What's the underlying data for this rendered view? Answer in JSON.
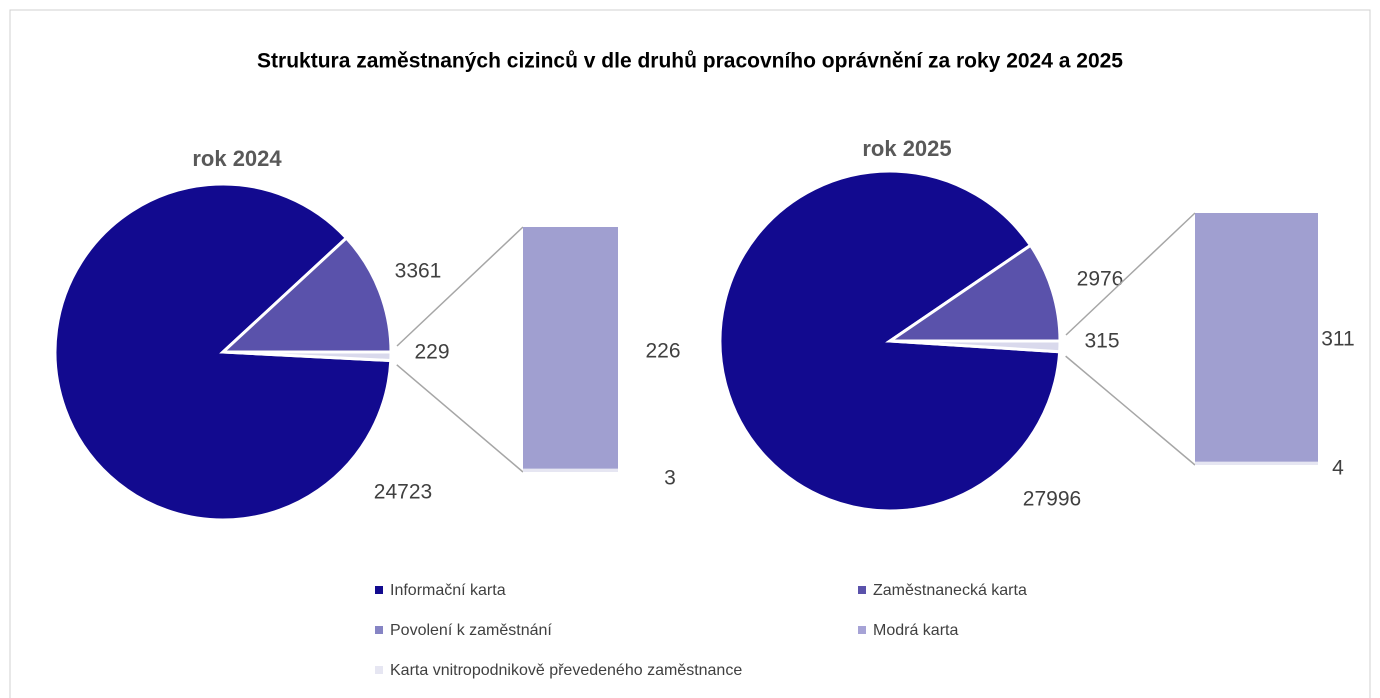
{
  "title": "Struktura zaměstnaných cizinců v dle druhů pracovního oprávnění za roky 2024 a 2025",
  "chart_data": [
    {
      "type": "bar-of-pie",
      "title": "rok 2024",
      "pie": {
        "values": [
          24723,
          3361,
          229
        ],
        "colors": [
          "#120a8f",
          "#5a52ab",
          "#d9d9ec"
        ]
      },
      "bar": {
        "values": [
          226,
          3
        ],
        "colors": [
          "#a09fd0",
          "#e6e6f2"
        ]
      }
    },
    {
      "type": "bar-of-pie",
      "title": "rok 2025",
      "pie": {
        "values": [
          27996,
          2976,
          315
        ],
        "colors": [
          "#120a8f",
          "#5a52ab",
          "#d9d9ec"
        ]
      },
      "bar": {
        "values": [
          311,
          4
        ],
        "colors": [
          "#a09fd0",
          "#e6e6f2"
        ]
      }
    }
  ],
  "legend": [
    {
      "name": "Informační karta",
      "color": "#120a8f"
    },
    {
      "name": "Zaměstnanecká karta",
      "color": "#5a52ab"
    },
    {
      "name": "Povolení k zaměstnání",
      "color": "#8684c4"
    },
    {
      "name": "Modrá karta",
      "color": "#a6a3d6"
    },
    {
      "name": "Karta vnitropodnikově převedeného zaměstnance",
      "color": "#e6e6f2"
    }
  ]
}
